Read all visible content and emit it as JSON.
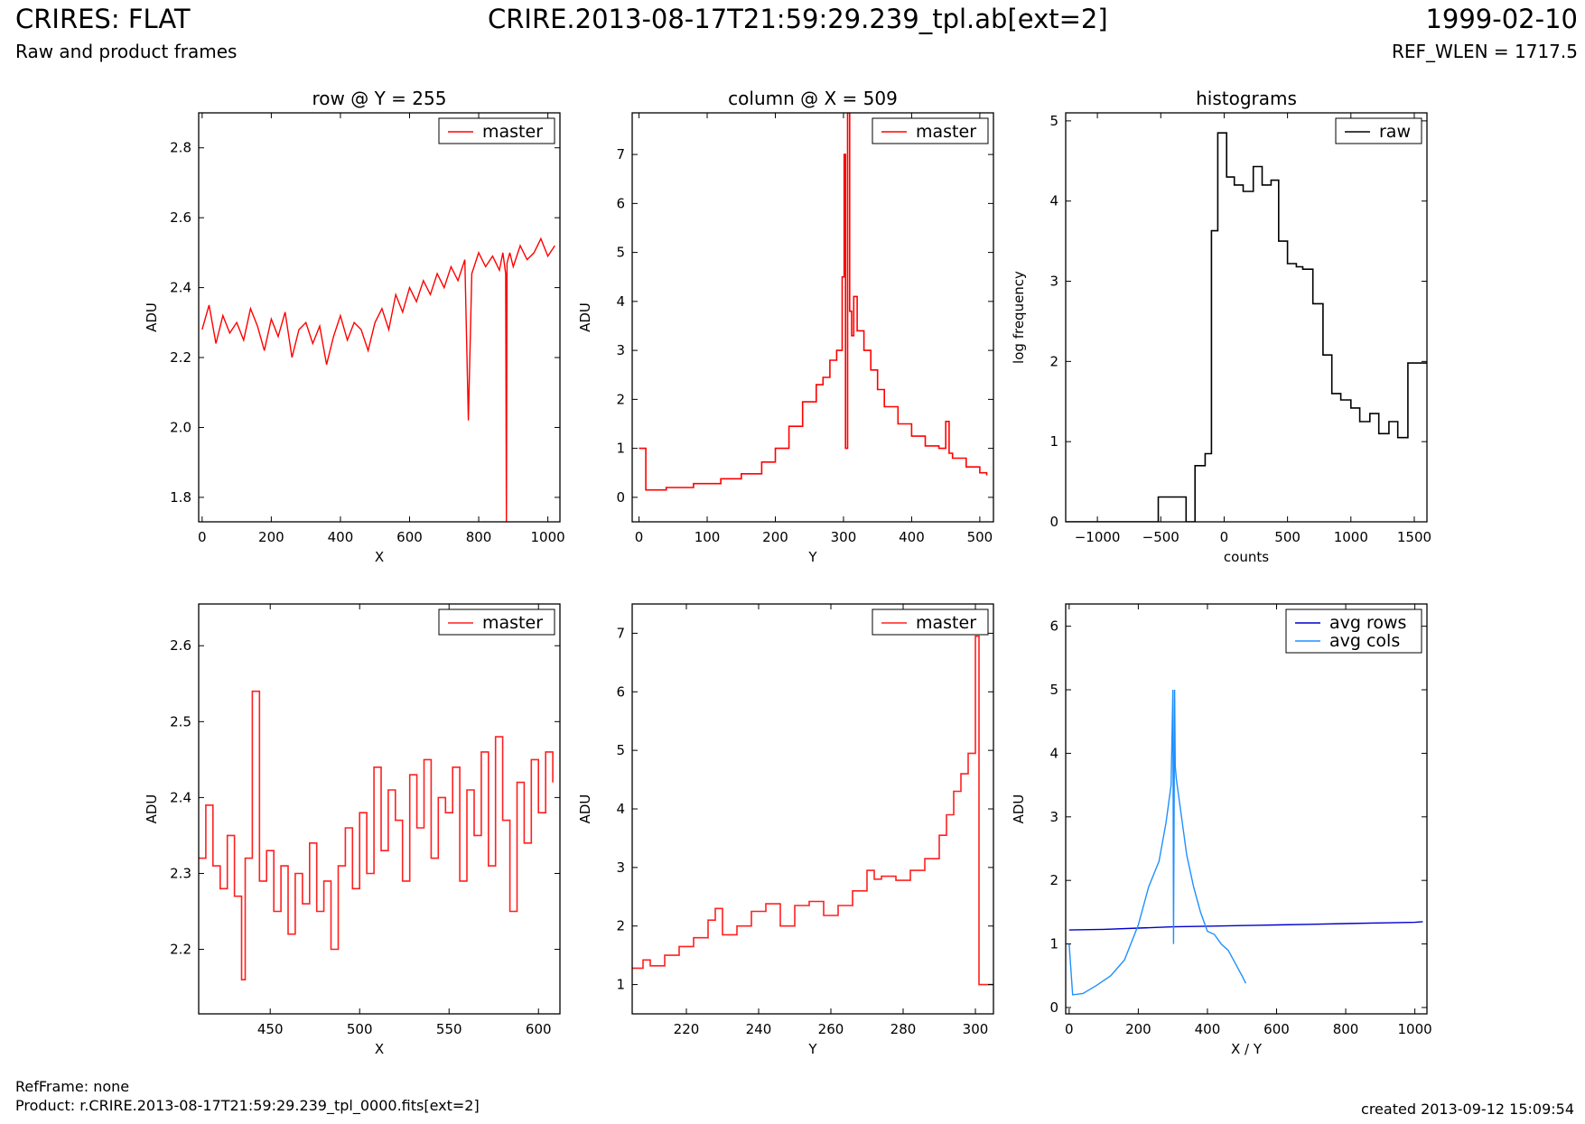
{
  "header": {
    "title_left": "CRIRES: FLAT",
    "title_center": "CRIRE.2013-08-17T21:59:29.239_tpl.ab[ext=2]",
    "title_right": "1999-02-10",
    "subtitle_left": "Raw and product frames",
    "subtitle_right": "REF_WLEN = 1717.5"
  },
  "footer": {
    "ref_frame": "RefFrame: none",
    "product": "Product: r.CRIRE.2013-08-17T21:59:29.239_tpl_0000.fits[ext=2]",
    "created": "created 2013-09-12 15:09:54"
  },
  "chart_data": [
    {
      "id": "row-full",
      "type": "line",
      "title": "row @ Y = 255",
      "xlabel": "X",
      "ylabel": "ADU",
      "xlim": [
        -10,
        1035
      ],
      "ylim": [
        1.73,
        2.9
      ],
      "xticks": [
        0,
        200,
        400,
        600,
        800,
        1000
      ],
      "yticks": [
        1.8,
        2.0,
        2.2,
        2.4,
        2.6,
        2.8
      ],
      "ytick_format": 1,
      "legend": "top-right",
      "series": [
        {
          "name": "master",
          "color": "#ff0000",
          "step": false,
          "x": [
            0,
            20,
            40,
            60,
            80,
            100,
            120,
            140,
            160,
            180,
            200,
            220,
            240,
            260,
            280,
            300,
            320,
            340,
            360,
            380,
            400,
            420,
            440,
            460,
            480,
            500,
            520,
            540,
            560,
            580,
            600,
            620,
            640,
            660,
            680,
            700,
            720,
            740,
            760,
            770,
            780,
            800,
            820,
            840,
            860,
            870,
            878,
            880,
            882,
            890,
            900,
            920,
            940,
            960,
            980,
            1000,
            1020
          ],
          "y": [
            2.28,
            2.35,
            2.24,
            2.32,
            2.27,
            2.3,
            2.25,
            2.34,
            2.29,
            2.22,
            2.31,
            2.26,
            2.33,
            2.2,
            2.28,
            2.3,
            2.24,
            2.29,
            2.18,
            2.26,
            2.32,
            2.25,
            2.3,
            2.28,
            2.22,
            2.3,
            2.34,
            2.28,
            2.38,
            2.33,
            2.4,
            2.36,
            2.42,
            2.38,
            2.44,
            2.4,
            2.46,
            2.42,
            2.48,
            2.02,
            2.44,
            2.5,
            2.46,
            2.49,
            2.45,
            2.5,
            2.44,
            1.73,
            2.47,
            2.5,
            2.46,
            2.52,
            2.48,
            2.5,
            2.54,
            2.49,
            2.52
          ]
        }
      ]
    },
    {
      "id": "column-full",
      "type": "line",
      "title": "column @ X = 509",
      "xlabel": "Y",
      "ylabel": "ADU",
      "xlim": [
        -10,
        520
      ],
      "ylim": [
        -0.5,
        7.85
      ],
      "xticks": [
        0,
        100,
        200,
        300,
        400,
        500
      ],
      "yticks": [
        0,
        1,
        2,
        3,
        4,
        5,
        6,
        7
      ],
      "ytick_format": 0,
      "legend": "top-right",
      "series": [
        {
          "name": "master",
          "color": "#ff0000",
          "step": true,
          "x": [
            0,
            8,
            10,
            40,
            80,
            120,
            150,
            180,
            200,
            220,
            240,
            260,
            270,
            280,
            290,
            298,
            301,
            303,
            305,
            306,
            309,
            312,
            315,
            320,
            330,
            340,
            350,
            360,
            380,
            400,
            420,
            440,
            450,
            455,
            460,
            480,
            500,
            510
          ],
          "y": [
            1.0,
            1.0,
            0.15,
            0.2,
            0.28,
            0.38,
            0.48,
            0.72,
            1.0,
            1.45,
            1.95,
            2.3,
            2.45,
            2.8,
            3.0,
            4.5,
            7.0,
            1.0,
            1.0,
            7.85,
            3.8,
            3.3,
            4.1,
            3.4,
            3.0,
            2.6,
            2.2,
            1.85,
            1.5,
            1.25,
            1.05,
            1.0,
            1.55,
            0.9,
            0.8,
            0.62,
            0.5,
            0.45
          ]
        }
      ]
    },
    {
      "id": "histograms",
      "type": "line",
      "title": "histograms",
      "xlabel": "counts",
      "ylabel": "log frequency",
      "xlim": [
        -1250,
        1600
      ],
      "ylim": [
        0,
        5.1
      ],
      "xticks": [
        -1000,
        -500,
        0,
        500,
        1000,
        1500
      ],
      "yticks": [
        0,
        1,
        2,
        3,
        4,
        5
      ],
      "ytick_format": 0,
      "legend": "top-right",
      "series": [
        {
          "name": "raw",
          "color": "#000000",
          "step": true,
          "x": [
            -1250,
            -520,
            -520,
            -300,
            -300,
            -230,
            -230,
            -150,
            -150,
            -100,
            -100,
            -50,
            -50,
            20,
            20,
            80,
            80,
            150,
            150,
            230,
            230,
            300,
            300,
            370,
            370,
            430,
            430,
            500,
            500,
            570,
            570,
            620,
            620,
            700,
            700,
            780,
            780,
            850,
            850,
            920,
            920,
            1000,
            1000,
            1070,
            1070,
            1150,
            1150,
            1220,
            1220,
            1300,
            1300,
            1370,
            1370,
            1450,
            1450,
            1530,
            1530,
            1600
          ],
          "y": [
            0,
            0,
            0.31,
            0.31,
            0,
            0,
            0.7,
            0.7,
            0.85,
            0.85,
            3.63,
            3.63,
            4.85,
            4.85,
            4.3,
            4.3,
            4.2,
            4.2,
            4.12,
            4.12,
            4.43,
            4.43,
            4.2,
            4.2,
            4.26,
            4.26,
            3.5,
            3.5,
            3.22,
            3.22,
            3.18,
            3.18,
            3.15,
            3.15,
            2.72,
            2.72,
            2.08,
            2.08,
            1.6,
            1.6,
            1.52,
            1.52,
            1.42,
            1.42,
            1.25,
            1.25,
            1.35,
            1.35,
            1.1,
            1.1,
            1.25,
            1.25,
            1.05,
            1.05,
            1.98,
            1.98,
            1.98,
            1.98
          ]
        }
      ]
    },
    {
      "id": "row-zoom",
      "type": "line",
      "title": "",
      "xlabel": "X",
      "ylabel": "ADU",
      "xlim": [
        410,
        612
      ],
      "ylim": [
        2.115,
        2.655
      ],
      "xticks": [
        450,
        500,
        550,
        600
      ],
      "yticks": [
        2.2,
        2.3,
        2.4,
        2.5,
        2.6
      ],
      "ytick_format": 1,
      "legend": "top-right",
      "series": [
        {
          "name": "master",
          "color": "#ff2020",
          "step": true,
          "x": [
            410,
            414,
            418,
            422,
            426,
            430,
            434,
            436,
            440,
            444,
            448,
            452,
            456,
            460,
            464,
            468,
            472,
            476,
            480,
            484,
            488,
            492,
            496,
            500,
            504,
            508,
            512,
            516,
            520,
            524,
            528,
            532,
            536,
            540,
            544,
            548,
            552,
            556,
            560,
            564,
            568,
            572,
            576,
            580,
            584,
            588,
            592,
            596,
            600,
            604,
            608
          ],
          "y": [
            2.32,
            2.39,
            2.31,
            2.28,
            2.35,
            2.27,
            2.16,
            2.32,
            2.54,
            2.29,
            2.33,
            2.25,
            2.31,
            2.22,
            2.3,
            2.26,
            2.34,
            2.25,
            2.29,
            2.2,
            2.31,
            2.36,
            2.28,
            2.38,
            2.3,
            2.44,
            2.33,
            2.41,
            2.37,
            2.29,
            2.43,
            2.36,
            2.45,
            2.32,
            2.4,
            2.38,
            2.44,
            2.29,
            2.41,
            2.35,
            2.46,
            2.31,
            2.48,
            2.37,
            2.25,
            2.42,
            2.34,
            2.45,
            2.38,
            2.46,
            2.42
          ]
        }
      ]
    },
    {
      "id": "column-zoom",
      "type": "line",
      "title": "",
      "xlabel": "Y",
      "ylabel": "ADU",
      "xlim": [
        205,
        305
      ],
      "ylim": [
        0.5,
        7.5
      ],
      "xticks": [
        220,
        240,
        260,
        280,
        300
      ],
      "yticks": [
        1,
        2,
        3,
        4,
        5,
        6,
        7
      ],
      "ytick_format": 0,
      "legend": "top-right",
      "series": [
        {
          "name": "master",
          "color": "#ff2020",
          "step": true,
          "x": [
            205,
            208,
            210,
            214,
            218,
            222,
            226,
            228,
            230,
            234,
            238,
            242,
            246,
            250,
            254,
            258,
            262,
            266,
            270,
            272,
            274,
            278,
            282,
            286,
            290,
            292,
            294,
            296,
            298,
            300,
            301,
            305
          ],
          "y": [
            1.28,
            1.42,
            1.32,
            1.5,
            1.65,
            1.8,
            2.1,
            2.3,
            1.85,
            2.0,
            2.25,
            2.38,
            2.0,
            2.35,
            2.42,
            2.18,
            2.35,
            2.6,
            2.95,
            2.8,
            2.85,
            2.78,
            2.95,
            3.15,
            3.55,
            3.9,
            4.3,
            4.6,
            4.95,
            6.95,
            1.0,
            1.0
          ]
        }
      ]
    },
    {
      "id": "averages",
      "type": "line",
      "title": "",
      "xlabel": "X / Y",
      "ylabel": "ADU",
      "xlim": [
        -10,
        1035
      ],
      "ylim": [
        -0.1,
        6.35
      ],
      "xticks": [
        0,
        200,
        400,
        600,
        800,
        1000
      ],
      "yticks": [
        0,
        1,
        2,
        3,
        4,
        5,
        6
      ],
      "ytick_format": 0,
      "legend": "top-right",
      "series": [
        {
          "name": "avg rows",
          "color": "#0000cc",
          "step": false,
          "x": [
            0,
            100,
            200,
            300,
            400,
            500,
            600,
            700,
            800,
            900,
            1000,
            1023
          ],
          "y": [
            1.22,
            1.23,
            1.25,
            1.27,
            1.28,
            1.29,
            1.3,
            1.31,
            1.32,
            1.33,
            1.34,
            1.35
          ]
        },
        {
          "name": "avg cols",
          "color": "#1e90ff",
          "step": false,
          "x": [
            0,
            10,
            40,
            80,
            120,
            160,
            200,
            230,
            260,
            280,
            295,
            300,
            302,
            305,
            307,
            310,
            320,
            340,
            360,
            380,
            400,
            420,
            440,
            460,
            480,
            500,
            511
          ],
          "y": [
            1.0,
            0.2,
            0.22,
            0.35,
            0.5,
            0.75,
            1.3,
            1.9,
            2.3,
            2.9,
            3.5,
            5.0,
            1.0,
            5.0,
            3.8,
            3.6,
            3.2,
            2.4,
            1.9,
            1.5,
            1.2,
            1.15,
            1.0,
            0.9,
            0.7,
            0.5,
            0.38
          ]
        }
      ]
    }
  ]
}
